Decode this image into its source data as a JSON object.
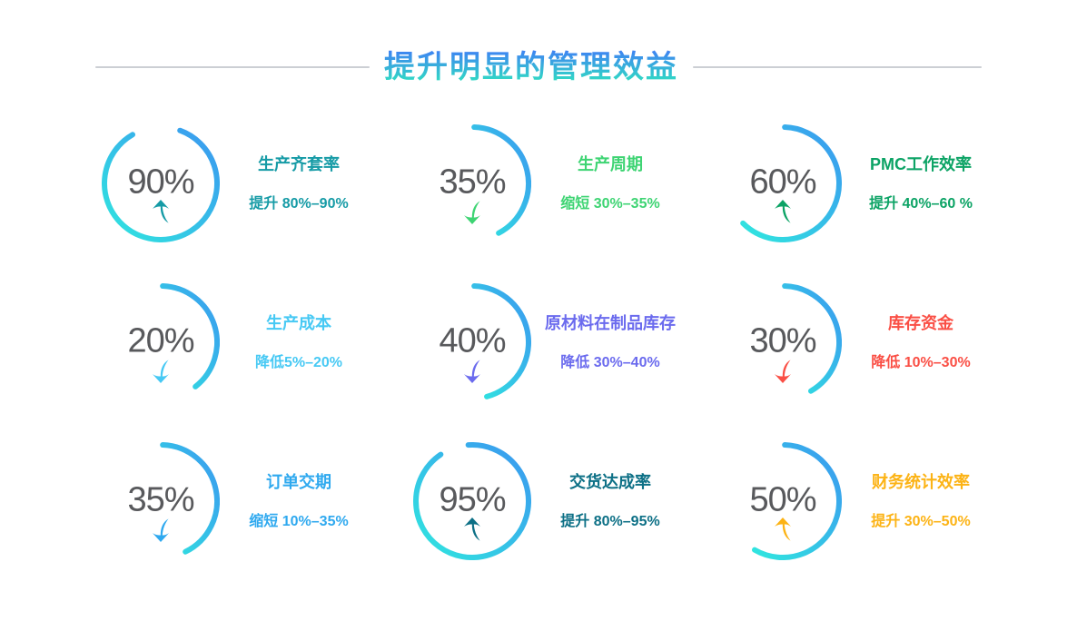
{
  "page": {
    "background": "#ffffff"
  },
  "header": {
    "title": "提升明显的管理效益",
    "title_gradient": [
      "#3f7ef5",
      "#2fe9bd"
    ],
    "rule_color": "#cccfd4"
  },
  "gauge_style": {
    "ring_gradient_start": "#3b97f0",
    "ring_gradient_end": "#30e6df",
    "percent_color": "#58595c",
    "trend_up_icon": "curved-swoosh-arrow-up",
    "trend_down_icon": "curved-swoosh-arrow-down"
  },
  "chart_data": {
    "type": "gauge",
    "title": "提升明显的管理效益",
    "layout": "3x3-grid",
    "ring_gradient": [
      "#3b97f0",
      "#30e6df"
    ],
    "items": [
      {
        "label": "生产齐套率",
        "value_pct": 90,
        "percent_label": "90%",
        "range_text": "提升 80%–90%",
        "direction": "up",
        "accent_color": "#169ba6",
        "arc": {
          "start_deg": 20,
          "sweep_deg": 310
        }
      },
      {
        "label": "生产周期",
        "value_pct": 35,
        "percent_label": "35%",
        "range_text": "缩短 30%–35%",
        "direction": "down",
        "accent_color": "#3ed473",
        "arc": {
          "start_deg": 2,
          "sweep_deg": 150
        }
      },
      {
        "label": "PMC工作效率",
        "value_pct": 60,
        "percent_label": "60%",
        "range_text": "提升 40%–60 %",
        "direction": "up",
        "accent_color": "#0ca365",
        "arc": {
          "start_deg": 2,
          "sweep_deg": 223
        }
      },
      {
        "label": "生产成本",
        "value_pct": 20,
        "percent_label": "20%",
        "range_text": "降低5%–20%",
        "direction": "down",
        "accent_color": "#47c9f4",
        "arc": {
          "start_deg": 2,
          "sweep_deg": 140
        }
      },
      {
        "label": "原材料在制品库存",
        "value_pct": 40,
        "percent_label": "40%",
        "range_text": "降低 30%–40%",
        "direction": "down",
        "accent_color": "#6b6bee",
        "arc": {
          "start_deg": 2,
          "sweep_deg": 163
        }
      },
      {
        "label": "库存资金",
        "value_pct": 30,
        "percent_label": "30%",
        "range_text": "降低 10%–30%",
        "direction": "down",
        "accent_color": "#fa4f45",
        "arc": {
          "start_deg": 2,
          "sweep_deg": 148
        }
      },
      {
        "label": "订单交期",
        "value_pct": 35,
        "percent_label": "35%",
        "range_text": "缩短 10%–35%",
        "direction": "down",
        "accent_color": "#2fa9ef",
        "arc": {
          "start_deg": 2,
          "sweep_deg": 152
        }
      },
      {
        "label": "交货达成率",
        "value_pct": 95,
        "percent_label": "95%",
        "range_text": "提升 80%–95%",
        "direction": "up",
        "accent_color": "#0d7086",
        "arc": {
          "start_deg": 356,
          "sweep_deg": 330
        }
      },
      {
        "label": "财务统计效率",
        "value_pct": 50,
        "percent_label": "50%",
        "range_text": "提升 30%–50%",
        "direction": "up",
        "accent_color": "#fcb315",
        "arc": {
          "start_deg": 2,
          "sweep_deg": 208
        }
      }
    ]
  }
}
